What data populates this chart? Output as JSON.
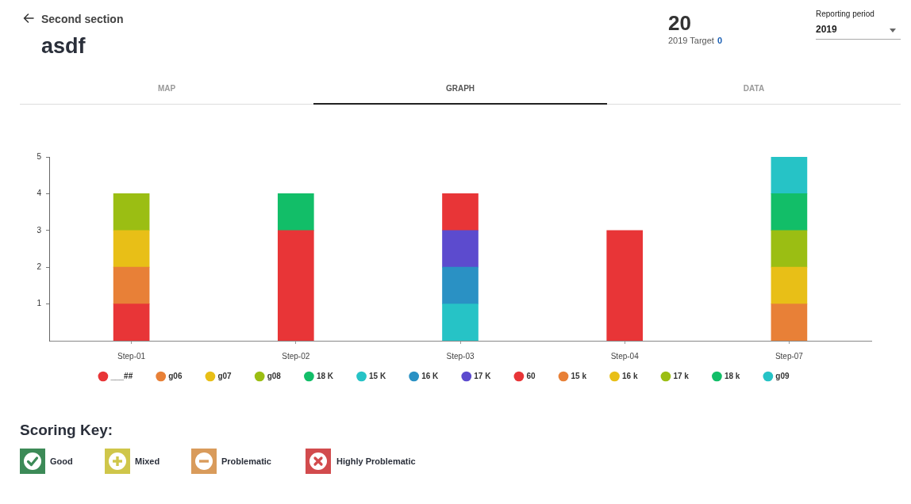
{
  "chart_data": {
    "type": "bar",
    "title": "asdf",
    "subtitle": "Second section",
    "categories": [
      "Step-01",
      "Step-02",
      "Step-03",
      "Step-04",
      "Step-07"
    ],
    "series": [
      {
        "name": "___##",
        "color": "#e83537",
        "values": [
          1,
          3,
          null,
          3,
          null
        ]
      },
      {
        "name": "g06",
        "color": "#e88037",
        "values": [
          1,
          null,
          null,
          null,
          null
        ]
      },
      {
        "name": "g07",
        "color": "#e8bf17",
        "values": [
          1,
          null,
          null,
          null,
          null
        ]
      },
      {
        "name": "g08",
        "color": "#9bbe13",
        "values": [
          1,
          null,
          null,
          null,
          null
        ]
      },
      {
        "name": "18 K",
        "color": "#12be68",
        "values": [
          null,
          1,
          null,
          null,
          null
        ]
      },
      {
        "name": "15 K",
        "color": "#26c3c6",
        "values": [
          null,
          null,
          1,
          null,
          null
        ]
      },
      {
        "name": "16 K",
        "color": "#2a91c4",
        "values": [
          null,
          null,
          1,
          null,
          null
        ]
      },
      {
        "name": "17 K",
        "color": "#5c4bce",
        "values": [
          null,
          null,
          1,
          null,
          null
        ]
      },
      {
        "name": "60",
        "color": "#e83537",
        "values": [
          null,
          null,
          1,
          null,
          null
        ]
      },
      {
        "name": "15 k",
        "color": "#e88037",
        "values": [
          null,
          null,
          null,
          null,
          1
        ]
      },
      {
        "name": "16 k",
        "color": "#e8bf17",
        "values": [
          null,
          null,
          null,
          null,
          1
        ]
      },
      {
        "name": "17 k",
        "color": "#9bbe13",
        "values": [
          null,
          null,
          null,
          null,
          1
        ]
      },
      {
        "name": "18 k",
        "color": "#12be68",
        "values": [
          null,
          null,
          null,
          null,
          1
        ]
      },
      {
        "name": "g09",
        "color": "#26c3c6",
        "values": [
          null,
          null,
          null,
          null,
          1
        ]
      }
    ],
    "stacked": true,
    "ylim": [
      0,
      5
    ],
    "yticks": [
      1,
      2,
      3,
      4,
      5
    ],
    "legend": "bottom",
    "annotations": [
      "20",
      "2019 Target",
      "0",
      "Reporting period",
      "2019",
      "MAP",
      "GRAPH",
      "DATA",
      "Scoring Key:",
      "Good",
      "Mixed",
      "Problematic",
      "Highly Problematic"
    ]
  }
}
